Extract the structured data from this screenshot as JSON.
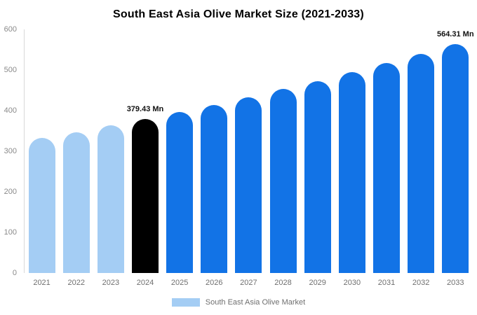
{
  "chart_data": {
    "type": "bar",
    "title": "South East Asia Olive Market Size (2021-2033)",
    "categories": [
      "2021",
      "2022",
      "2023",
      "2024",
      "2025",
      "2026",
      "2027",
      "2028",
      "2029",
      "2030",
      "2031",
      "2032",
      "2033"
    ],
    "values": [
      332.4,
      347.4,
      363.1,
      379.43,
      396.5,
      414.4,
      433.1,
      452.7,
      473.1,
      494.4,
      516.7,
      540.0,
      564.31
    ],
    "unit": "Mn",
    "ylim": [
      0,
      600
    ],
    "ytick_step": 100,
    "grid": false,
    "bar_colors": [
      "#a4cdf4",
      "#a4cdf4",
      "#a4cdf4",
      "#000000",
      "#1273e6",
      "#1273e6",
      "#1273e6",
      "#1273e6",
      "#1273e6",
      "#1273e6",
      "#1273e6",
      "#1273e6",
      "#1273e6"
    ],
    "annotations": [
      {
        "index": 3,
        "text": "379.43 Mn"
      },
      {
        "index": 12,
        "text": "564.31 Mn"
      }
    ],
    "legend": {
      "label": "South East Asia Olive Market",
      "swatch_color": "#a4cdf4",
      "position": "bottom"
    }
  }
}
